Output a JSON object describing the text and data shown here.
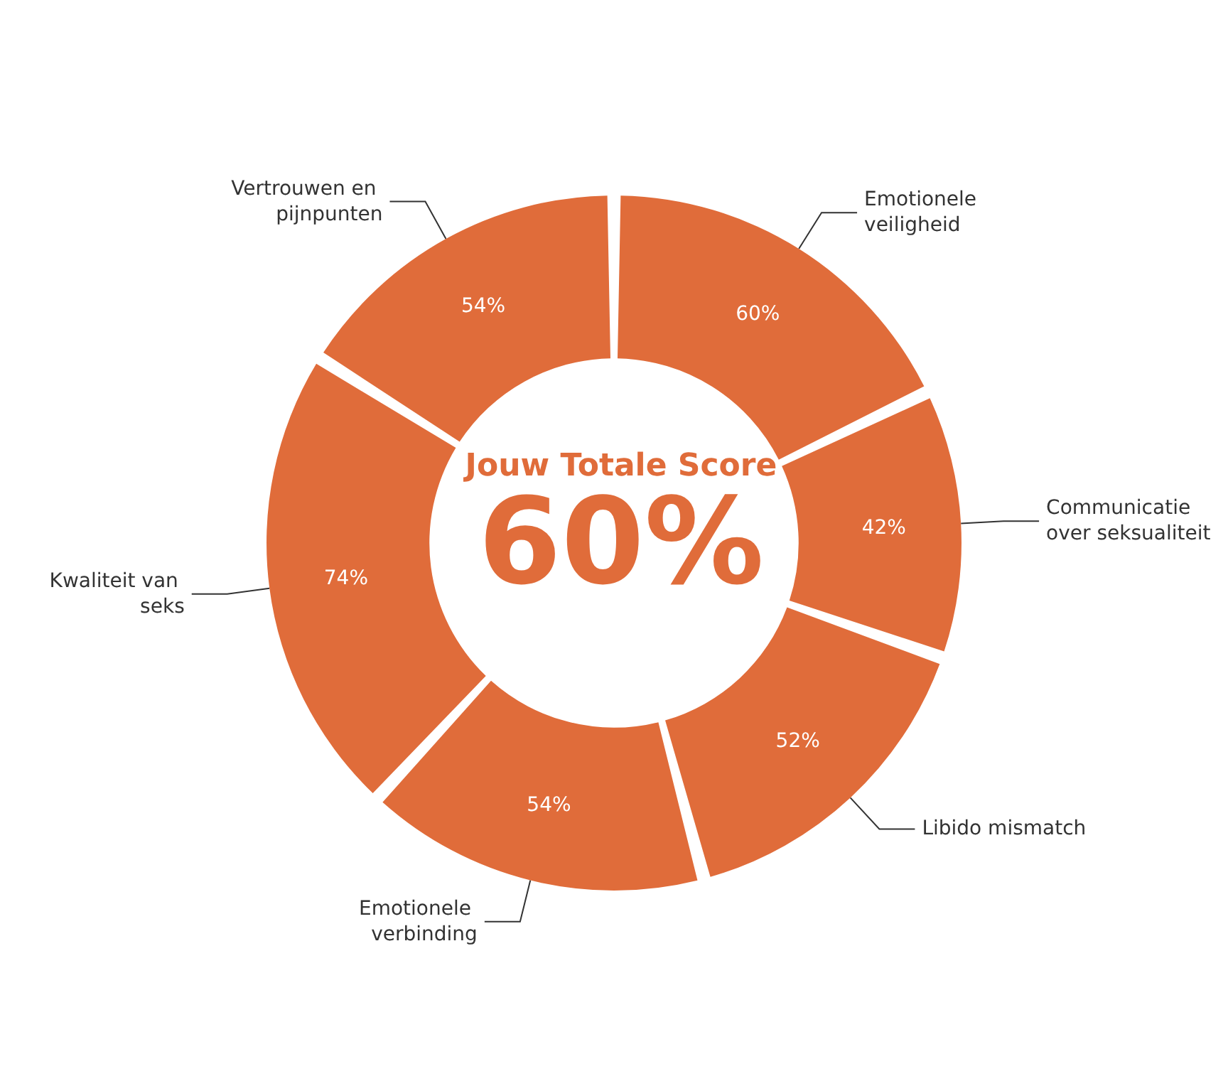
{
  "chart_data": {
    "type": "donut",
    "title": "Jouw Totale Score",
    "subtitle": "60%",
    "categories": [
      "Emotionele veiligheid",
      "Communicatie over seksualiteit",
      "Libido mismatch",
      "Emotionele verbinding",
      "Kwaliteit van seks",
      "Vertrouwen en pijnpunten"
    ],
    "values": [
      60,
      42,
      52,
      54,
      74,
      54
    ],
    "value_labels": [
      "60%",
      "42%",
      "52%",
      "54%",
      "74%",
      "54%"
    ],
    "colors": [
      "#e06c3a",
      "#e06c3a",
      "#e06c3a",
      "#e06c3a",
      "#e06c3a",
      "#e06c3a"
    ],
    "legend": false
  }
}
